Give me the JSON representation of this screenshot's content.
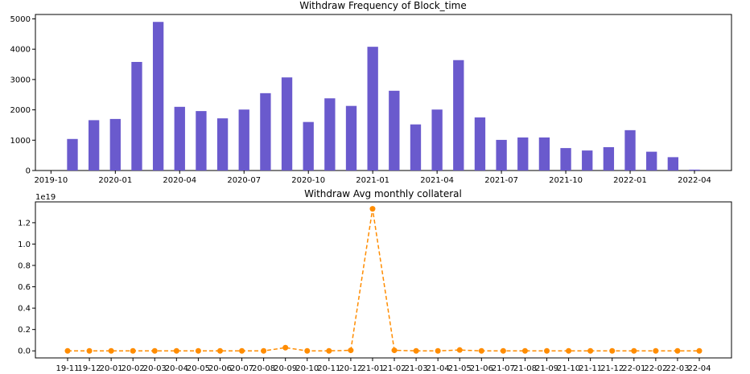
{
  "chart_data": [
    {
      "type": "bar",
      "title": "Withdraw Frequency of Block_time",
      "categories": [
        "19-11",
        "19-12",
        "20-01",
        "20-02",
        "20-03",
        "20-04",
        "20-05",
        "20-06",
        "20-07",
        "20-08",
        "20-09",
        "20-10",
        "20-11",
        "20-12",
        "21-01",
        "21-02",
        "21-03",
        "21-04",
        "21-05",
        "21-06",
        "21-07",
        "21-08",
        "21-09",
        "21-10",
        "21-11",
        "21-12",
        "22-01",
        "22-02",
        "22-03",
        "22-04"
      ],
      "values": [
        1040,
        1660,
        1700,
        3580,
        4900,
        2100,
        1960,
        1720,
        2010,
        2550,
        3070,
        1600,
        2380,
        2130,
        4080,
        2630,
        1520,
        2010,
        3640,
        1750,
        1010,
        1090,
        1090,
        740,
        660,
        770,
        1330,
        620,
        440,
        30
      ],
      "x_tick_labels": [
        "2019-10",
        "2020-01",
        "2020-04",
        "2020-07",
        "2020-10",
        "2021-01",
        "2021-04",
        "2021-07",
        "2021-10",
        "2022-01",
        "2022-04"
      ],
      "y_ticks": [
        0,
        1000,
        2000,
        3000,
        4000,
        5000
      ],
      "ylim": [
        0,
        5145
      ],
      "bar_color": "#6a5acd"
    },
    {
      "type": "line",
      "title": "Withdraw Avg monthly collateral",
      "x": [
        "19-11",
        "19-12",
        "20-01",
        "20-02",
        "20-03",
        "20-04",
        "20-05",
        "20-06",
        "20-07",
        "20-08",
        "20-09",
        "20-10",
        "20-11",
        "20-12",
        "21-01",
        "21-02",
        "21-03",
        "21-04",
        "21-05",
        "21-06",
        "21-07",
        "21-08",
        "21-09",
        "21-10",
        "21-11",
        "21-12",
        "22-01",
        "22-02",
        "22-03",
        "22-04"
      ],
      "values": [
        0,
        0,
        0,
        0,
        0,
        0,
        0,
        0,
        0,
        0,
        0.03,
        0,
        0,
        0.005,
        1.33,
        0.005,
        0,
        0,
        0.008,
        0,
        0,
        0,
        0,
        0,
        0,
        0,
        0,
        0,
        0,
        0
      ],
      "y_offset_label": "1e19",
      "y_ticks": [
        "0.0",
        "0.2",
        "0.4",
        "0.6",
        "0.8",
        "1.0",
        "1.2"
      ],
      "ylim": [
        -0.066,
        1.395
      ],
      "line_style": "dashed",
      "marker": "circle",
      "color": "#ff8c00"
    }
  ]
}
